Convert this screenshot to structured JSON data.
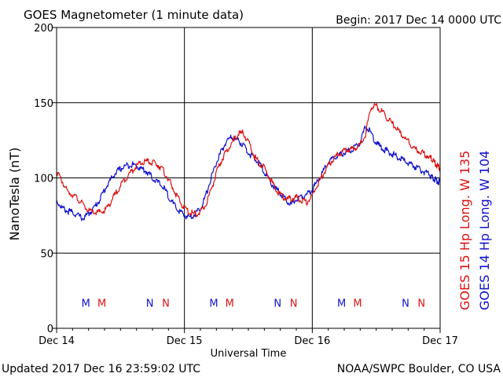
{
  "title": "GOES Magnetometer (1 minute data)",
  "begin": "Begin:  2017 Dec 14 0000 UTC",
  "updated": "Updated 2017 Dec 16 23:59:02 UTC",
  "credit": "NOAA/SWPC Boulder, CO USA",
  "colors": {
    "goes15": "#dd1111",
    "goes14": "#1111cc",
    "axis": "#000000"
  },
  "chart_data": {
    "type": "line",
    "title": "GOES Magnetometer (1 minute data)",
    "xlabel": "Universal Time",
    "ylabel": "NanoTesla (nT)",
    "x_unit": "hours since 2017 Dec 14 0000 UTC",
    "xlim": [
      0,
      72
    ],
    "ylim": [
      0,
      200
    ],
    "yticks": [
      0,
      50,
      100,
      150,
      200
    ],
    "xticks": [
      {
        "x": 0,
        "label": "Dec 14"
      },
      {
        "x": 24,
        "label": "Dec 15"
      },
      {
        "x": 48,
        "label": "Dec 16"
      },
      {
        "x": 72,
        "label": "Dec 17"
      }
    ],
    "grid": true,
    "legend_position": "right (vertical)",
    "series": [
      {
        "name": "GOES 15 Hp  Long. W 135",
        "color": "#dd1111",
        "x": [
          0,
          1,
          2,
          3,
          4,
          5,
          6,
          7,
          8,
          9,
          10,
          11,
          12,
          13,
          14,
          15,
          16,
          17,
          18,
          19,
          20,
          21,
          22,
          23,
          24,
          25,
          26,
          27,
          28,
          29,
          30,
          31,
          32,
          33,
          34,
          35,
          36,
          37,
          38,
          39,
          40,
          41,
          42,
          43,
          44,
          45,
          46,
          47,
          48,
          49,
          50,
          51,
          52,
          53,
          54,
          55,
          56,
          57,
          58,
          59,
          60,
          61,
          62,
          63,
          64,
          65,
          66,
          67,
          68,
          69,
          70,
          70.5,
          71,
          71.5,
          72
        ],
        "y": [
          104,
          98,
          91,
          89,
          86,
          82,
          78,
          77,
          77,
          78,
          83,
          89,
          95,
          100,
          104,
          108,
          110,
          111,
          110,
          109,
          105,
          99,
          92,
          85,
          80,
          77,
          76,
          77,
          82,
          92,
          103,
          112,
          118,
          124,
          129,
          130,
          124,
          115,
          110,
          107,
          100,
          93,
          89,
          86,
          86,
          87,
          85,
          84,
          88,
          96,
          102,
          108,
          113,
          116,
          118,
          119,
          120,
          122,
          129,
          147,
          148,
          144,
          140,
          136,
          132,
          128,
          124,
          120,
          118,
          116,
          114,
          112,
          110,
          108,
          106
        ]
      },
      {
        "name": "GOES 14 Hp  Long. W 104",
        "color": "#1111cc",
        "x": [
          0,
          1,
          2,
          3,
          4,
          5,
          6,
          7,
          8,
          9,
          10,
          11,
          12,
          13,
          14,
          15,
          16,
          17,
          18,
          19,
          20,
          21,
          22,
          23,
          24,
          25,
          26,
          27,
          28,
          29,
          30,
          31,
          32,
          33,
          34,
          35,
          36,
          37,
          38,
          39,
          40,
          41,
          42,
          43,
          44,
          45,
          46,
          47,
          48,
          49,
          50,
          51,
          52,
          53,
          54,
          55,
          56,
          57,
          58,
          59,
          60,
          61,
          62,
          63,
          64,
          65,
          66,
          67,
          68,
          69,
          70,
          70.5,
          71,
          71.5,
          72
        ],
        "y": [
          85,
          80,
          78,
          77,
          75,
          73,
          76,
          80,
          85,
          92,
          98,
          103,
          106,
          108,
          109,
          108,
          106,
          104,
          100,
          97,
          94,
          88,
          82,
          78,
          75,
          74,
          76,
          80,
          88,
          100,
          110,
          118,
          125,
          127,
          125,
          122,
          117,
          113,
          110,
          104,
          98,
          93,
          90,
          85,
          82,
          86,
          88,
          89,
          92,
          98,
          104,
          110,
          113,
          115,
          117,
          118,
          120,
          124,
          134,
          130,
          123,
          120,
          118,
          116,
          114,
          112,
          110,
          108,
          106,
          104,
          102,
          100,
          99,
          98,
          97
        ]
      }
    ],
    "annotations": [
      {
        "text": "M",
        "x": 5.5,
        "series": "GOES 14 Hp  Long. W 104"
      },
      {
        "text": "M",
        "x": 8.5,
        "series": "GOES 15 Hp  Long. W 135"
      },
      {
        "text": "N",
        "x": 17.5,
        "series": "GOES 14 Hp  Long. W 104"
      },
      {
        "text": "N",
        "x": 20.5,
        "series": "GOES 15 Hp  Long. W 135"
      },
      {
        "text": "M",
        "x": 29.5,
        "series": "GOES 14 Hp  Long. W 104"
      },
      {
        "text": "M",
        "x": 32.5,
        "series": "GOES 15 Hp  Long. W 135"
      },
      {
        "text": "N",
        "x": 41.5,
        "series": "GOES 14 Hp  Long. W 104"
      },
      {
        "text": "N",
        "x": 44.5,
        "series": "GOES 15 Hp  Long. W 135"
      },
      {
        "text": "M",
        "x": 53.5,
        "series": "GOES 14 Hp  Long. W 104"
      },
      {
        "text": "M",
        "x": 56.5,
        "series": "GOES 15 Hp  Long. W 135"
      },
      {
        "text": "N",
        "x": 65.5,
        "series": "GOES 14 Hp  Long. W 104"
      },
      {
        "text": "N",
        "x": 68.5,
        "series": "GOES 15 Hp  Long. W 135"
      }
    ],
    "annotation_y": 17
  }
}
